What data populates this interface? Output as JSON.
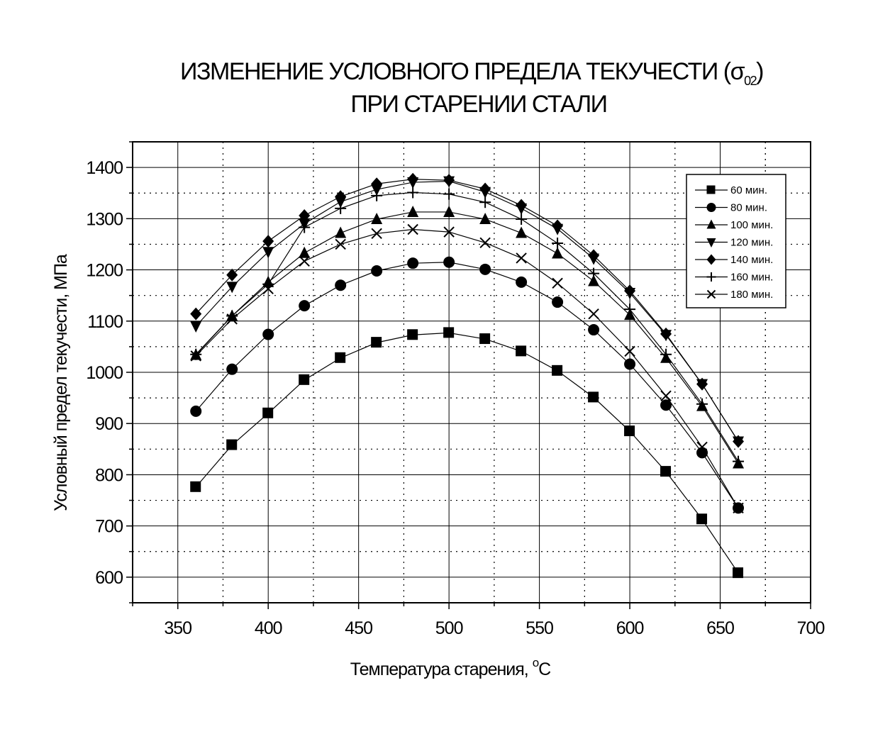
{
  "chart_data": {
    "type": "line",
    "title": {
      "line1_main": "ИЗМЕНЕНИЕ УСЛОВНОГО ПРЕДЕЛА ТЕКУЧЕСТИ (σ",
      "line1_sub": "02",
      "line1_end": ")",
      "line2": "ПРИ СТАРЕНИИ СТАЛИ"
    },
    "xlabel_main": "Температура старения, ",
    "xlabel_sup": "o",
    "xlabel_end": "C",
    "ylabel": "Условный предел текучести, МПа",
    "xlim": [
      325,
      700
    ],
    "ylim": [
      550,
      1450
    ],
    "xticks": [
      350,
      400,
      450,
      500,
      550,
      600,
      650,
      700
    ],
    "yticks": [
      600,
      700,
      800,
      900,
      1000,
      1100,
      1200,
      1300,
      1400
    ],
    "grid": true,
    "legend_position": "top-right",
    "x": [
      360,
      380,
      400,
      420,
      440,
      460,
      480,
      500,
      520,
      540,
      560,
      580,
      600,
      620,
      640,
      660
    ],
    "series": [
      {
        "name": "60 мин.",
        "marker": "square",
        "values": [
          776,
          858,
          920,
          985,
          1028,
          1058,
          1073,
          1077,
          1065,
          1041,
          1003,
          951,
          885,
          806,
          713,
          608
        ]
      },
      {
        "name": "80 мин.",
        "marker": "circle",
        "values": [
          924,
          1006,
          1074,
          1130,
          1170,
          1198,
          1213,
          1215,
          1201,
          1176,
          1137,
          1083,
          1016,
          936,
          843,
          735
        ]
      },
      {
        "name": "100 мин.",
        "marker": "triangle-up",
        "values": [
          1034,
          1110,
          1176,
          1233,
          1272,
          1299,
          1313,
          1313,
          1299,
          1272,
          1232,
          1178,
          1112,
          1028,
          934,
          822
        ]
      },
      {
        "name": "120 мин.",
        "marker": "triangle-down",
        "values": [
          1090,
          1167,
          1235,
          1290,
          1333,
          1357,
          1371,
          1373,
          1352,
          1320,
          1280,
          1222,
          1155,
          1073,
          977,
          865
        ]
      },
      {
        "name": "140 мин.",
        "marker": "diamond",
        "values": [
          1114,
          1190,
          1256,
          1306,
          1343,
          1368,
          1377,
          1375,
          1358,
          1326,
          1286,
          1228,
          1159,
          1075,
          977,
          865
        ]
      },
      {
        "name": "160 мин.",
        "marker": "plus",
        "values": [
          1035,
          1110,
          1172,
          1283,
          1320,
          1345,
          1351,
          1348,
          1332,
          1299,
          1252,
          1193,
          1123,
          1035,
          938,
          826
        ]
      },
      {
        "name": "180 мин.",
        "marker": "cross",
        "values": [
          1032,
          1104,
          1163,
          1217,
          1250,
          1271,
          1279,
          1274,
          1253,
          1223,
          1174,
          1114,
          1041,
          954,
          854,
          735
        ]
      }
    ]
  }
}
